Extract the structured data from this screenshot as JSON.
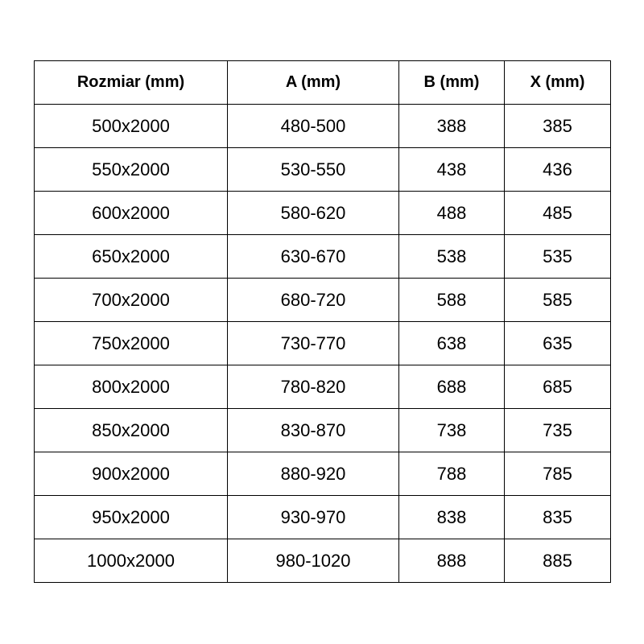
{
  "table": {
    "headers": [
      "Rozmiar (mm)",
      "A (mm)",
      "B (mm)",
      "X (mm)"
    ],
    "rows": [
      [
        "500x2000",
        "480-500",
        "388",
        "385"
      ],
      [
        "550x2000",
        "530-550",
        "438",
        "436"
      ],
      [
        "600x2000",
        "580-620",
        "488",
        "485"
      ],
      [
        "650x2000",
        "630-670",
        "538",
        "535"
      ],
      [
        "700x2000",
        "680-720",
        "588",
        "585"
      ],
      [
        "750x2000",
        "730-770",
        "638",
        "635"
      ],
      [
        "800x2000",
        "780-820",
        "688",
        "685"
      ],
      [
        "850x2000",
        "830-870",
        "738",
        "735"
      ],
      [
        "900x2000",
        "880-920",
        "788",
        "785"
      ],
      [
        "950x2000",
        "930-970",
        "838",
        "835"
      ],
      [
        "1000x2000",
        "980-1020",
        "888",
        "885"
      ]
    ]
  }
}
